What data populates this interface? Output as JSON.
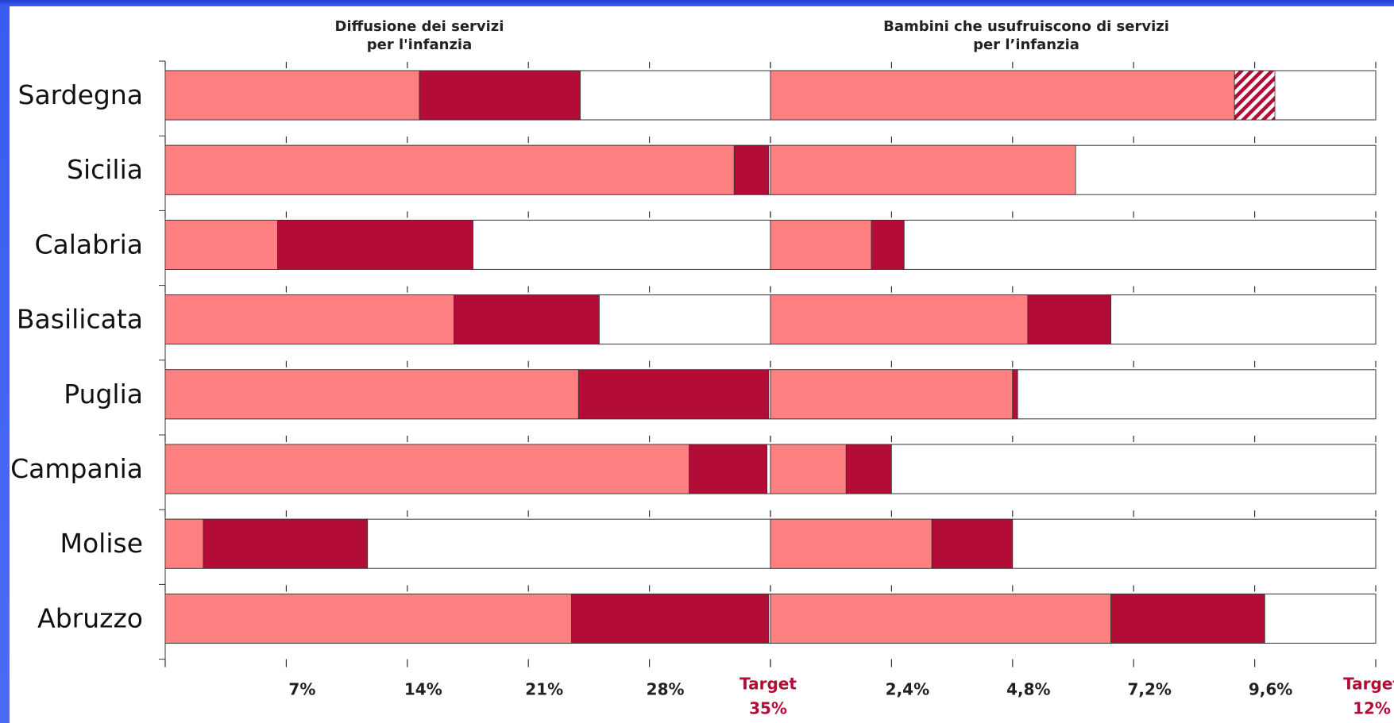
{
  "chart_data": [
    {
      "type": "bar",
      "title_lines": [
        "Diffusione dei servizi",
        "per l'infanzia"
      ],
      "categories": [
        "Sardegna",
        "Sicilia",
        "Calabria",
        "Basilicata",
        "Puglia",
        "Campania",
        "Molise",
        "Abruzzo"
      ],
      "series": [
        {
          "values": [
            14.7,
            32.9,
            6.5,
            16.7,
            23.9,
            30.3,
            2.2,
            23.5
          ]
        },
        {
          "values": [
            9.3,
            2.0,
            11.3,
            8.4,
            11.0,
            4.5,
            9.5,
            11.4
          ]
        }
      ],
      "xlim": [
        0,
        35
      ],
      "tick_labels": [
        "7%",
        "14%",
        "21%",
        "28%"
      ],
      "target_label": [
        "Target",
        "35%"
      ]
    },
    {
      "type": "bar",
      "title_lines": [
        "Bambini che usufruiscono di servizi",
        "per l’infanzia"
      ],
      "categories": [
        "Sardegna",
        "Sicilia",
        "Calabria",
        "Basilicata",
        "Puglia",
        "Campania",
        "Molise",
        "Abruzzo"
      ],
      "series": [
        {
          "values": [
            9.2,
            6.05,
            2.0,
            5.1,
            4.8,
            1.5,
            3.2,
            6.75
          ]
        },
        {
          "values": [
            0,
            0,
            0.65,
            1.65,
            0.1,
            0.9,
            1.6,
            3.05
          ]
        },
        {
          "values": [
            0.8,
            0,
            0,
            0,
            0,
            0,
            0,
            0
          ],
          "pattern": "hatched"
        }
      ],
      "xlim": [
        0,
        12
      ],
      "tick_labels": [
        "2,4%",
        "4,8%",
        "7,2%",
        "9,6%"
      ],
      "target_label": [
        "Target",
        "12%"
      ]
    }
  ],
  "colors": {
    "series1": "#ff8080",
    "series2": "#b30c36",
    "target_text": "#b30c36",
    "border": "#333333"
  }
}
